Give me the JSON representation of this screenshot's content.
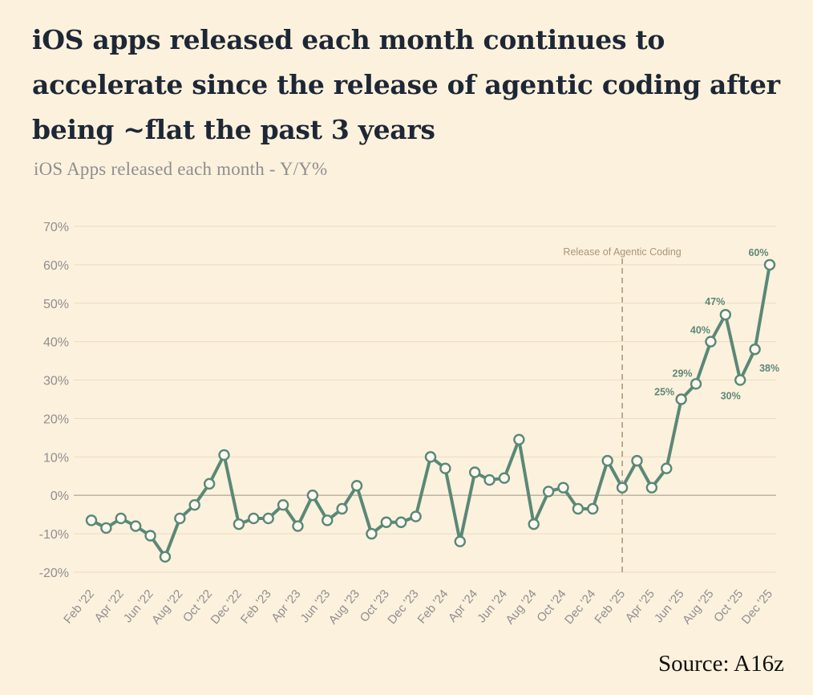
{
  "title": "iOS apps released each month continues to accelerate since the release of agentic coding after being ~flat the past 3 years",
  "subtitle": "iOS Apps released each month - Y/Y%",
  "source": "Source: A16z",
  "colors": {
    "background": "#fcf1dc",
    "line": "#5a8877",
    "grid": "#e9dcc3",
    "zero_line": "#b6ad9b",
    "annotation": "#a89a7d",
    "label": "#5b8778"
  },
  "chart_data": {
    "type": "line",
    "title": "iOS Apps released each month - Y/Y%",
    "xlabel": "",
    "ylabel": "",
    "ylim": [
      -20,
      70
    ],
    "yticks": [
      70,
      60,
      50,
      40,
      30,
      20,
      10,
      0,
      -10,
      -20
    ],
    "ytick_labels": [
      "70%",
      "60%",
      "50%",
      "40%",
      "30%",
      "20%",
      "10%",
      "0%",
      "-10%",
      "-20%"
    ],
    "grid": true,
    "x": [
      "Feb '22",
      "Mar '22",
      "Apr '22",
      "May '22",
      "Jun '22",
      "Jul '22",
      "Aug '22",
      "Sep '22",
      "Oct '22",
      "Nov '22",
      "Dec '22",
      "Jan '23",
      "Feb '23",
      "Mar '23",
      "Apr '23",
      "May '23",
      "Jun '23",
      "Jul '23",
      "Aug '23",
      "Sep '23",
      "Oct '23",
      "Nov '23",
      "Dec '23",
      "Jan '24",
      "Feb '24",
      "Mar '24",
      "Apr '24",
      "May '24",
      "Jun '24",
      "Jul '24",
      "Aug '24",
      "Sep '24",
      "Oct '24",
      "Nov '24",
      "Dec '24",
      "Jan '25",
      "Feb '25",
      "Mar '25",
      "Apr '25",
      "May '25",
      "Jun '25",
      "Jul '25",
      "Aug '25",
      "Sep '25",
      "Oct '25",
      "Nov '25",
      "Dec '25"
    ],
    "x_tick_labels": [
      "Feb '22",
      "Apr '22",
      "Jun '22",
      "Aug '22",
      "Oct '22",
      "Dec '22",
      "Feb '23",
      "Apr '23",
      "Jun '23",
      "Aug '23",
      "Oct '23",
      "Dec '23",
      "Feb '24",
      "Apr '24",
      "Jun '24",
      "Aug '24",
      "Oct '24",
      "Dec '24",
      "Feb '25",
      "Apr '25",
      "Jun '25",
      "Aug '25",
      "Oct '25",
      "Dec '25"
    ],
    "series": [
      {
        "name": "iOS Apps released each month - Y/Y%",
        "values": [
          -6.5,
          -8.5,
          -6,
          -8,
          -10.5,
          -16,
          -6,
          -2.5,
          3,
          10.5,
          -7.5,
          -6,
          -6,
          -2.5,
          -8,
          0,
          -6.5,
          -3.5,
          2.5,
          -10,
          -7,
          -7,
          -5.5,
          10,
          7,
          -12,
          6,
          4,
          4.5,
          14.5,
          -7.5,
          1,
          2,
          -3.5,
          -3.5,
          9,
          2,
          9,
          2,
          7,
          25,
          29,
          40,
          47,
          30,
          38,
          60
        ]
      }
    ],
    "data_labels": [
      {
        "x": "Jun '25",
        "label": "25%"
      },
      {
        "x": "Jul '25",
        "label": "29%"
      },
      {
        "x": "Aug '25",
        "label": "40%"
      },
      {
        "x": "Sep '25",
        "label": "47%"
      },
      {
        "x": "Oct '25",
        "label": "30%"
      },
      {
        "x": "Nov '25",
        "label": "38%"
      },
      {
        "x": "Dec '25",
        "label": "60%"
      }
    ],
    "annotations": [
      {
        "x": "Feb '25",
        "label": "Release of Agentic Coding",
        "style": "dashed-vertical-line"
      }
    ],
    "legend": "none"
  }
}
